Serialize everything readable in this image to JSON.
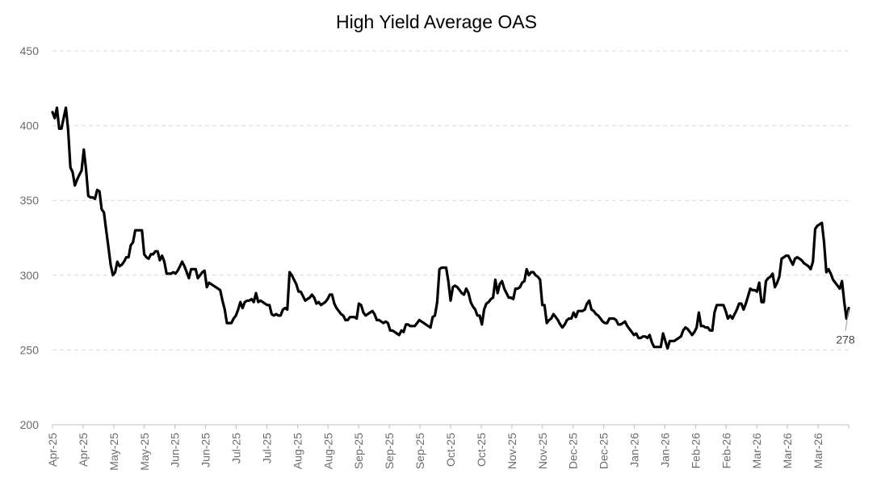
{
  "chart_data": {
    "type": "line",
    "title": "High Yield Average OAS",
    "xlabel": "",
    "ylabel": "",
    "ylim": [
      200,
      450
    ],
    "yticks": [
      200,
      250,
      300,
      350,
      400,
      450
    ],
    "grid": "horizontal dashed",
    "legend": "none",
    "x_tick_labels": [
      "Apr-25",
      "Apr-25",
      "May-25",
      "May-25",
      "Jun-25",
      "Jun-25",
      "Jul-25",
      "Jul-25",
      "Aug-25",
      "Aug-25",
      "Sep-25",
      "Sep-25",
      "Sep-25",
      "Oct-25",
      "Oct-25",
      "Nov-25",
      "Nov-25",
      "Dec-25",
      "Dec-25",
      "Jan-26",
      "Jan-26",
      "Feb-26",
      "Feb-26",
      "Mar-26",
      "Mar-26",
      "Mar-26"
    ],
    "series_color": "#000000",
    "values": [
      409,
      405,
      412,
      398,
      398,
      405,
      412,
      397,
      372,
      369,
      360,
      364,
      367,
      370,
      384,
      371,
      353,
      352,
      352,
      351,
      357,
      356,
      344,
      342,
      330,
      319,
      307,
      300,
      302,
      309,
      306,
      307,
      309,
      312,
      312,
      320,
      322,
      330,
      330,
      330,
      330,
      314,
      312,
      311,
      314,
      314,
      316,
      316,
      310,
      313,
      309,
      301,
      301,
      301,
      302,
      301,
      303,
      306,
      309,
      306,
      302,
      298,
      304,
      304,
      304,
      298,
      300,
      302,
      303,
      292,
      295,
      294,
      293,
      292,
      291,
      290,
      283,
      277,
      268,
      268,
      268,
      271,
      273,
      277,
      282,
      278,
      282,
      283,
      283,
      284,
      282,
      288,
      282,
      283,
      282,
      281,
      280,
      280,
      274,
      273,
      274,
      273,
      273,
      277,
      278,
      277,
      302,
      300,
      297,
      294,
      289,
      289,
      286,
      283,
      284,
      285,
      287,
      285,
      281,
      282,
      280,
      281,
      282,
      284,
      287,
      287,
      281,
      278,
      276,
      274,
      273,
      270,
      270,
      272,
      272,
      272,
      271,
      281,
      280,
      275,
      273,
      274,
      275,
      276,
      274,
      270,
      270,
      269,
      268,
      269,
      268,
      263,
      263,
      262,
      261,
      260,
      263,
      262,
      267,
      267,
      266,
      266,
      266,
      268,
      270,
      269,
      268,
      267,
      266,
      265,
      272,
      273,
      282,
      304,
      305,
      305,
      305,
      296,
      283,
      292,
      293,
      292,
      290,
      288,
      287,
      291,
      288,
      282,
      279,
      277,
      273,
      273,
      267,
      277,
      281,
      282,
      284,
      285,
      297,
      288,
      294,
      296,
      291,
      288,
      285,
      285,
      284,
      291,
      291,
      292,
      295,
      296,
      304,
      300,
      302,
      302,
      300,
      299,
      297,
      280,
      280,
      268,
      270,
      271,
      274,
      272,
      270,
      267,
      265,
      267,
      270,
      271,
      271,
      275,
      272,
      276,
      276,
      276,
      277,
      281,
      283,
      277,
      276,
      274,
      273,
      271,
      269,
      268,
      268,
      271,
      271,
      271,
      270,
      267,
      267,
      268,
      269,
      266,
      264,
      262,
      260,
      261,
      258,
      258,
      259,
      259,
      258,
      260,
      255,
      252,
      252,
      252,
      252,
      261,
      256,
      251,
      256,
      256,
      256,
      257,
      258,
      259,
      263,
      265,
      264,
      262,
      260,
      262,
      265,
      275,
      266,
      266,
      265,
      265,
      263,
      263,
      275,
      280,
      280,
      280,
      280,
      276,
      271,
      273,
      271,
      274,
      277,
      281,
      281,
      277,
      281,
      286,
      291,
      290,
      290,
      289,
      295,
      282,
      282,
      296,
      298,
      299,
      301,
      292,
      295,
      299,
      311,
      312,
      313,
      313,
      310,
      307,
      311,
      312,
      311,
      310,
      308,
      307,
      306,
      304,
      309,
      331,
      333,
      334,
      335,
      322,
      302,
      304,
      301,
      297,
      295,
      293,
      291,
      296,
      282,
      271,
      278
    ],
    "end_label": "278"
  }
}
